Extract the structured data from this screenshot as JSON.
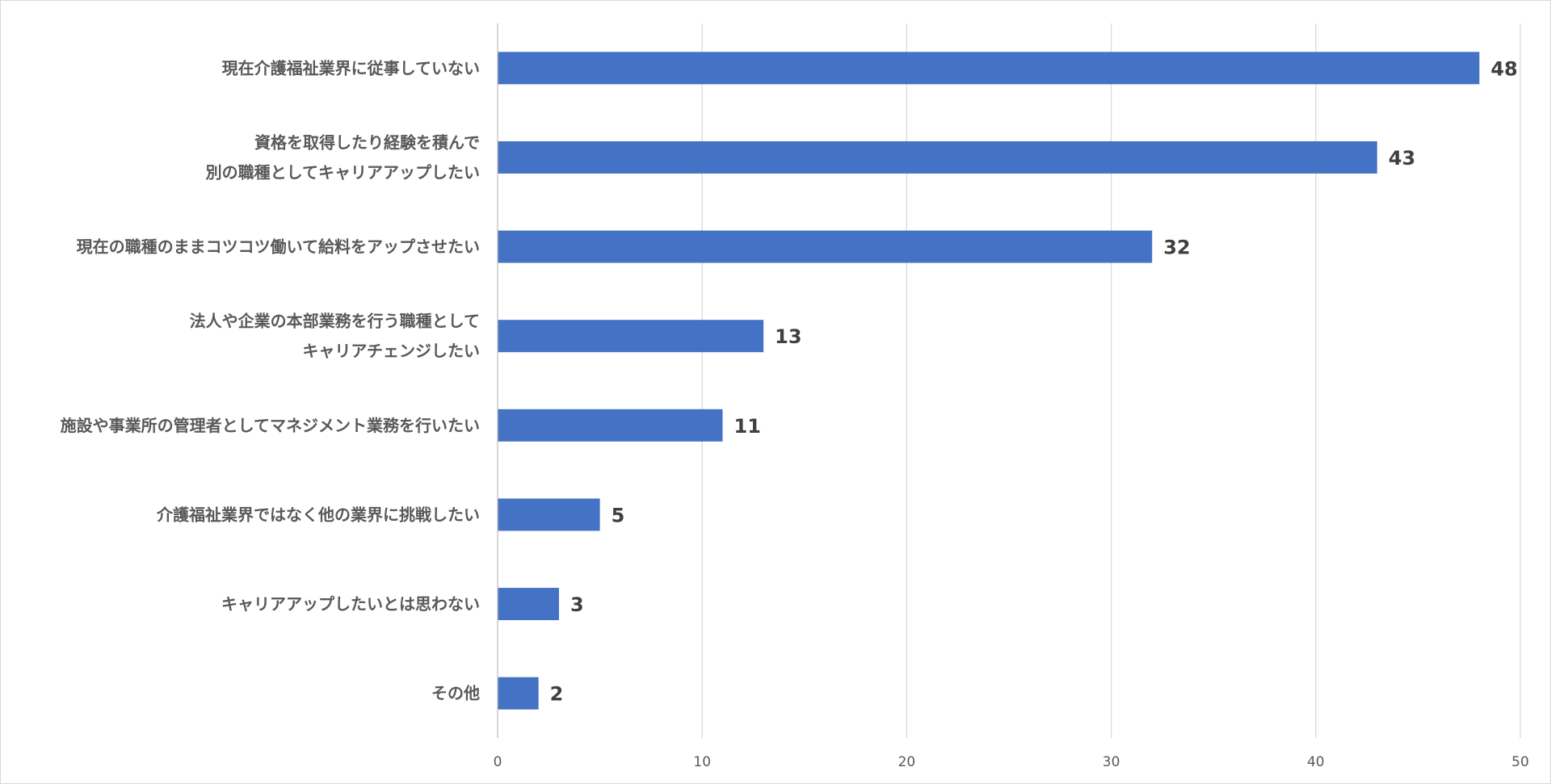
{
  "chart_data": {
    "type": "bar",
    "orientation": "horizontal",
    "categories": [
      [
        "現在介護福祉業界に従事していない"
      ],
      [
        "資格を取得したり経験を積んで",
        "別の職種としてキャリアアップしたい"
      ],
      [
        "現在の職種のままコツコツ働いて給料をアップさせたい"
      ],
      [
        "法人や企業の本部業務を行う職種として",
        "キャリアチェンジしたい"
      ],
      [
        "施設や事業所の管理者としてマネジメント業務を行いたい"
      ],
      [
        "介護福祉業界ではなく他の業界に挑戦したい"
      ],
      [
        "キャリアアップしたいとは思わない"
      ],
      [
        "その他"
      ]
    ],
    "values": [
      48,
      43,
      32,
      13,
      11,
      5,
      3,
      2
    ],
    "data_labels": [
      "48",
      "43",
      "32",
      "13",
      "11",
      "5",
      "3",
      "2"
    ],
    "x_ticks": [
      0,
      10,
      20,
      30,
      40,
      50
    ],
    "xlim": [
      0,
      50
    ],
    "title": "",
    "xlabel": "",
    "ylabel": "",
    "grid": "vertical",
    "legend": "none",
    "colors": {
      "bar": "#4472c4",
      "grid": "#d9d9d9",
      "label": "#595959",
      "data_label": "#404040"
    }
  }
}
